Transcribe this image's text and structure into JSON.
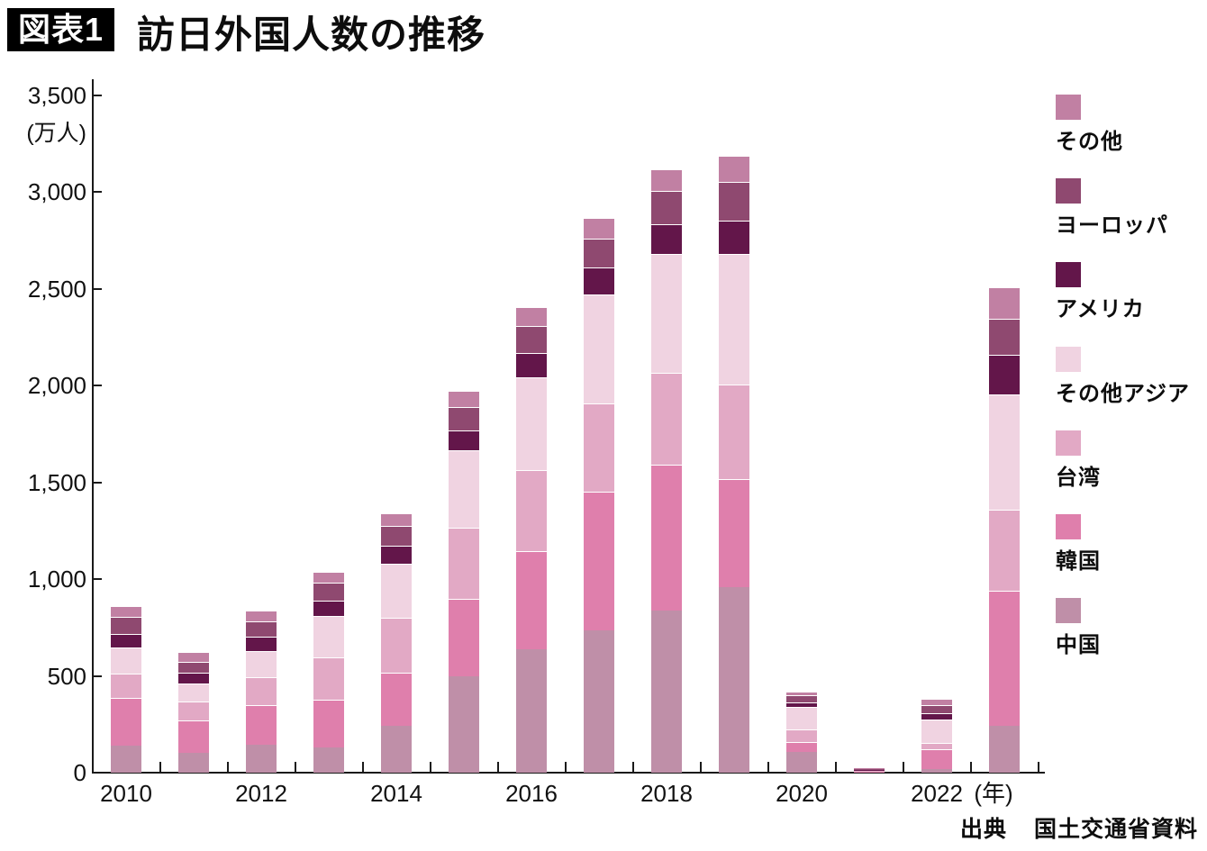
{
  "figure": {
    "tag": "図表1",
    "title": "訪日外国人数の推移"
  },
  "y_axis": {
    "unit": "(万人)",
    "tick_step": 500,
    "tick_labels": [
      "0",
      "500",
      "1,000",
      "1,500",
      "2,000",
      "2,500",
      "3,000",
      "3,500"
    ]
  },
  "x_axis": {
    "labeled_years": [
      "2010",
      "2012",
      "2014",
      "2016",
      "2018",
      "2020",
      "2022"
    ],
    "unit": "(年)"
  },
  "legend": {
    "entries": [
      {
        "label": "その他",
        "color": "#c180a3"
      },
      {
        "label": "ヨーロッパ",
        "color": "#8f4970"
      },
      {
        "label": "アメリカ",
        "color": "#63164a"
      },
      {
        "label": "その他アジア",
        "color": "#f0d3e1"
      },
      {
        "label": "台湾",
        "color": "#e2a9c5"
      },
      {
        "label": "韓国",
        "color": "#df7fac"
      },
      {
        "label": "中国",
        "color": "#bf8fa8"
      }
    ]
  },
  "source": {
    "prefix": "出典",
    "text": "国土交通省資料"
  },
  "chart_data": {
    "type": "bar",
    "stacked": true,
    "title": "訪日外国人数の推移",
    "unit": "万人",
    "ylim": [
      0,
      3500
    ],
    "grid": false,
    "legend_position": "right",
    "categories": [
      2010,
      2011,
      2012,
      2013,
      2014,
      2015,
      2016,
      2017,
      2018,
      2019,
      2020,
      2021,
      2022,
      2023
    ],
    "series": [
      {
        "name": "中国",
        "color": "#bf8fa8",
        "values": [
          141,
          104,
          143,
          131,
          241,
          499,
          637,
          736,
          838,
          959,
          107,
          4,
          19,
          243
        ]
      },
      {
        "name": "韓国",
        "color": "#df7fac",
        "values": [
          244,
          166,
          204,
          246,
          276,
          400,
          509,
          714,
          754,
          558,
          49,
          2,
          101,
          696
        ]
      },
      {
        "name": "台湾",
        "color": "#e2a9c5",
        "values": [
          127,
          99,
          147,
          221,
          283,
          368,
          417,
          456,
          476,
          489,
          69,
          1,
          33,
          420
        ]
      },
      {
        "name": "その他アジア",
        "color": "#f0d3e1",
        "values": [
          134,
          91,
          136,
          213,
          282,
          397,
          480,
          566,
          614,
          676,
          115,
          7,
          120,
          597
        ]
      },
      {
        "name": "アメリカ",
        "color": "#63164a",
        "values": [
          73,
          57,
          72,
          80,
          89,
          103,
          124,
          137,
          153,
          172,
          22,
          2,
          32,
          205
        ]
      },
      {
        "name": "ヨーロッパ",
        "color": "#8f4970",
        "values": [
          85,
          57,
          78,
          90,
          104,
          124,
          142,
          153,
          172,
          198,
          39,
          7,
          46,
          187
        ]
      },
      {
        "name": "その他",
        "color": "#c180a3",
        "values": [
          57,
          48,
          56,
          55,
          66,
          83,
          95,
          107,
          112,
          136,
          11,
          2,
          32,
          159
        ]
      }
    ],
    "totals": [
      861,
      622,
      836,
      1036,
      1341,
      1974,
      2404,
      2869,
      3119,
      3188,
      412,
      25,
      383,
      2507
    ]
  }
}
